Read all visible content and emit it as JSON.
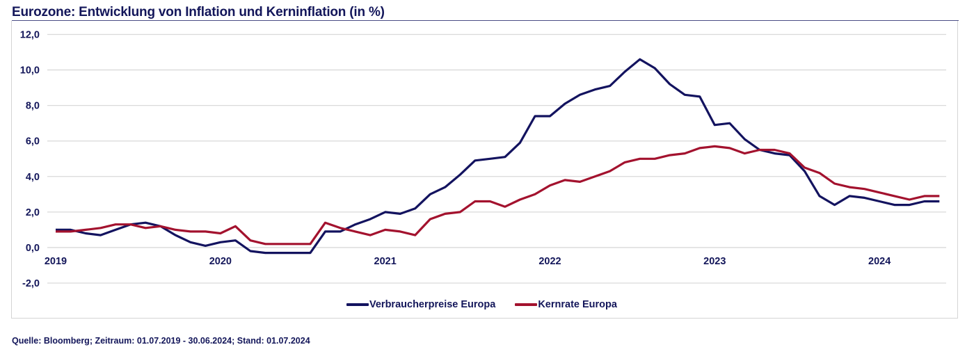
{
  "header": {
    "title": "Eurozone: Entwicklung von Inflation und Kerninflation (in %)"
  },
  "footer": {
    "source": "Quelle: Bloomberg; Zeitraum: 01.07.2019 - 30.06.2024; Stand: 01.07.2024"
  },
  "chart_data": {
    "type": "line",
    "title": "Eurozone: Entwicklung von Inflation und Kerninflation (in %)",
    "xlabel": "",
    "ylabel": "",
    "ylim": [
      -2,
      12
    ],
    "yticks": [
      12,
      10,
      8,
      6,
      4,
      2,
      0,
      -2
    ],
    "ytick_labels": [
      "12,0",
      "10,0",
      "8,0",
      "6,0",
      "4,0",
      "2,0",
      "0,0",
      "-2,0"
    ],
    "grid": true,
    "legend_position": "bottom-center",
    "x_start": "2019-07",
    "x_end": "2024-06",
    "x_interval": "monthly",
    "xtick_labels": [
      {
        "label": "2019",
        "index": 0
      },
      {
        "label": "2020",
        "index": 11
      },
      {
        "label": "2021",
        "index": 22
      },
      {
        "label": "2022",
        "index": 33
      },
      {
        "label": "2023",
        "index": 44
      },
      {
        "label": "2024",
        "index": 55
      }
    ],
    "series": [
      {
        "name": "Verbraucherpreise Europa",
        "color": "#13135f",
        "values": [
          1.0,
          1.0,
          0.8,
          0.7,
          1.0,
          1.3,
          1.4,
          1.2,
          0.7,
          0.3,
          0.1,
          0.3,
          0.4,
          -0.2,
          -0.3,
          -0.3,
          -0.3,
          -0.3,
          0.9,
          0.9,
          1.3,
          1.6,
          2.0,
          1.9,
          2.2,
          3.0,
          3.4,
          4.1,
          4.9,
          5.0,
          5.1,
          5.9,
          7.4,
          7.4,
          8.1,
          8.6,
          8.9,
          9.1,
          9.9,
          10.6,
          10.1,
          9.2,
          8.6,
          8.5,
          6.9,
          7.0,
          6.1,
          5.5,
          5.3,
          5.2,
          4.3,
          2.9,
          2.4,
          2.9,
          2.8,
          2.6,
          2.4,
          2.4,
          2.6,
          2.6
        ]
      },
      {
        "name": "Kernrate Europa",
        "color": "#a3122e",
        "values": [
          0.9,
          0.9,
          1.0,
          1.1,
          1.3,
          1.3,
          1.1,
          1.2,
          1.0,
          0.9,
          0.9,
          0.8,
          1.2,
          0.4,
          0.2,
          0.2,
          0.2,
          0.2,
          1.4,
          1.1,
          0.9,
          0.7,
          1.0,
          0.9,
          0.7,
          1.6,
          1.9,
          2.0,
          2.6,
          2.6,
          2.3,
          2.7,
          3.0,
          3.5,
          3.8,
          3.7,
          4.0,
          4.3,
          4.8,
          5.0,
          5.0,
          5.2,
          5.3,
          5.6,
          5.7,
          5.6,
          5.3,
          5.5,
          5.5,
          5.3,
          4.5,
          4.2,
          3.6,
          3.4,
          3.3,
          3.1,
          2.9,
          2.7,
          2.9,
          2.9
        ]
      }
    ]
  }
}
